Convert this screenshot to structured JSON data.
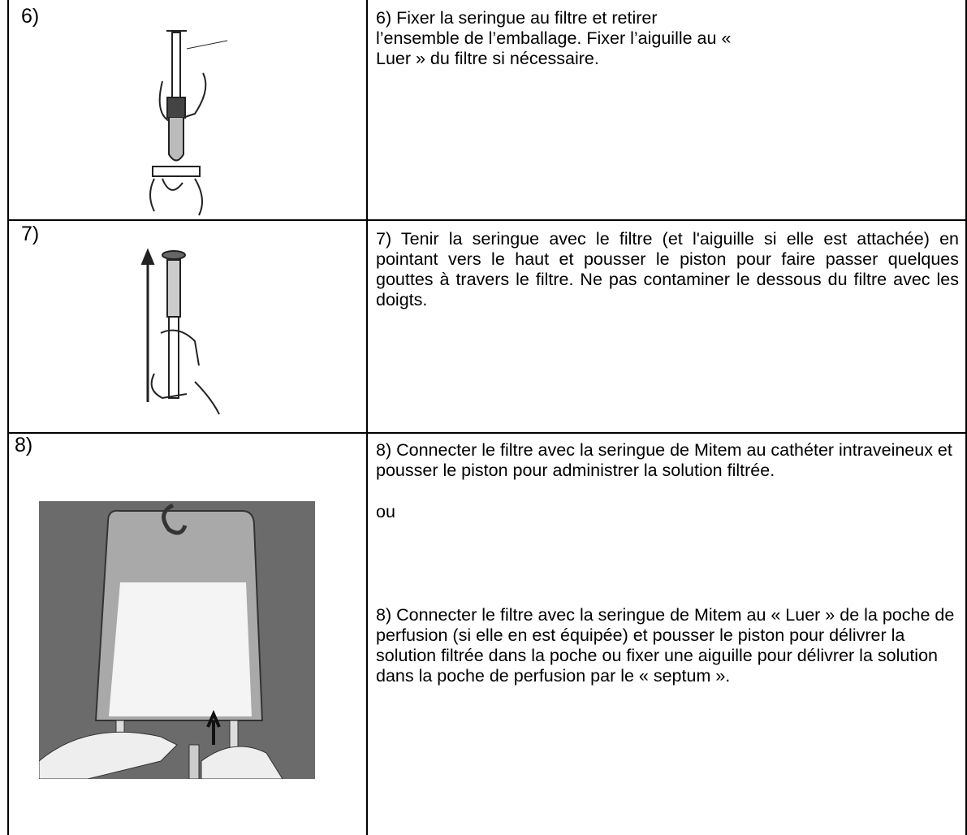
{
  "rows": [
    {
      "step": "6)",
      "paragraphs": [
        "6) Fixer la seringue au filtre et retirer l’ensemble de l’emballage. Fixer l’aiguille au « Luer » du filtre si nécessaire."
      ]
    },
    {
      "step": "7)",
      "paragraphs": [
        "7) Tenir la seringue avec le filtre (et l'aiguille si elle est attachée) en pointant vers le haut et pousser le piston pour faire passer quelques gouttes à travers le filtre. Ne pas contaminer le dessous du filtre avec les doigts."
      ]
    },
    {
      "step": "8)",
      "paragraphs": [
        "8) Connecter le filtre avec la seringue de Mitem au cathéter intraveineux et pousser le piston pour administrer la solution filtrée.",
        "ou",
        "8) Connecter le filtre avec la seringue de Mitem au « Luer » de la poche de perfusion (si elle en est équipée) et pousser le piston pour délivrer la solution filtrée dans la poche ou fixer une aiguille pour délivrer la solution dans la poche de perfusion par le « septum »."
      ]
    }
  ]
}
